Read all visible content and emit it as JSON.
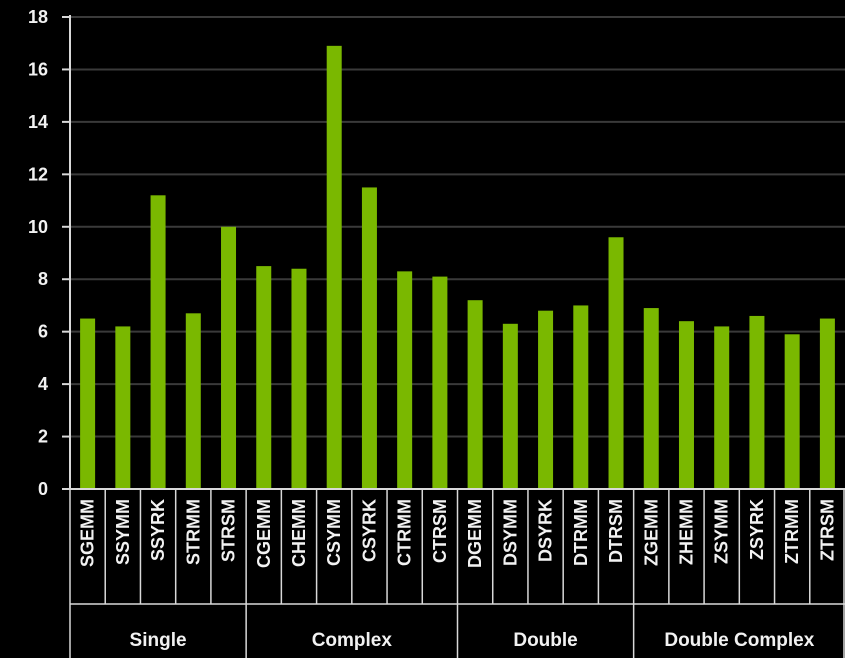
{
  "chart_data": {
    "type": "bar",
    "categories": [
      "SGEMM",
      "SSYMM",
      "SSYRK",
      "STRMM",
      "STRSM",
      "CGEMM",
      "CHEMM",
      "CSYMM",
      "CSYRK",
      "CTRMM",
      "CTRSM",
      "DGEMM",
      "DSYMM",
      "DSYRK",
      "DTRMM",
      "DTRSM",
      "ZGEMM",
      "ZHEMM",
      "ZSYMM",
      "ZSYRK",
      "ZTRMM",
      "ZTRSM"
    ],
    "values": [
      6.5,
      6.2,
      11.2,
      6.7,
      10.0,
      8.5,
      8.4,
      16.9,
      11.5,
      8.3,
      8.1,
      7.2,
      6.3,
      6.8,
      7.0,
      9.6,
      6.9,
      6.4,
      6.2,
      6.6,
      5.9,
      6.5
    ],
    "groups": [
      {
        "label": "Single",
        "count": 5
      },
      {
        "label": "Complex",
        "count": 6
      },
      {
        "label": "Double",
        "count": 5
      },
      {
        "label": "Double Complex",
        "count": 6
      }
    ],
    "yticks": [
      0,
      2,
      4,
      6,
      8,
      10,
      12,
      14,
      16,
      18
    ],
    "ylim": [
      0,
      18
    ],
    "grid": true,
    "title": "",
    "xlabel": "",
    "ylabel": "",
    "bar_color": "#7ab800",
    "grid_color": "#3a3a3a",
    "axis_color": "#d9d9d9"
  }
}
